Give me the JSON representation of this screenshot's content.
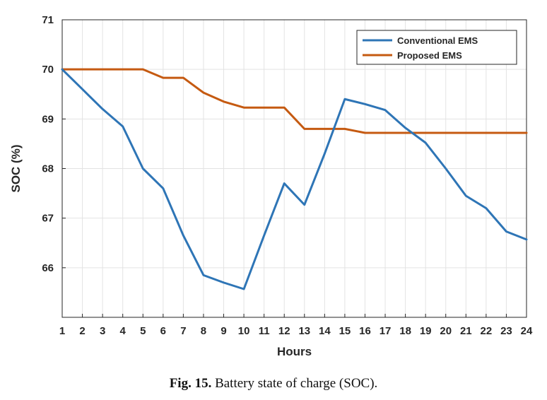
{
  "chart_data": {
    "type": "line",
    "title": "",
    "xlabel": "Hours",
    "ylabel": "SOC (%)",
    "x": [
      1,
      2,
      3,
      4,
      5,
      6,
      7,
      8,
      9,
      10,
      11,
      12,
      13,
      14,
      15,
      16,
      17,
      18,
      19,
      20,
      21,
      22,
      23,
      24
    ],
    "xlim": [
      1,
      24
    ],
    "ylim": [
      65,
      71
    ],
    "yticks": [
      66,
      67,
      68,
      69,
      70,
      71
    ],
    "grid": true,
    "legend_position": "top-right",
    "series": [
      {
        "name": "Conventional EMS",
        "color": "#2e75b6",
        "values": [
          70.0,
          69.6,
          69.2,
          68.85,
          68.0,
          67.6,
          66.65,
          65.85,
          65.7,
          65.57,
          66.65,
          67.7,
          67.27,
          68.3,
          69.4,
          69.3,
          69.18,
          68.82,
          68.52,
          68.0,
          67.45,
          67.2,
          66.73,
          66.57
        ]
      },
      {
        "name": "Proposed EMS",
        "color": "#c55a11",
        "values": [
          70.0,
          70.0,
          70.0,
          70.0,
          70.0,
          69.83,
          69.83,
          69.53,
          69.35,
          69.23,
          69.23,
          69.23,
          68.8,
          68.8,
          68.8,
          68.72,
          68.72,
          68.72,
          68.72,
          68.72,
          68.72,
          68.72,
          68.72,
          68.72
        ]
      }
    ]
  },
  "caption": {
    "label": "Fig. 15.",
    "text": "Battery state of charge (SOC)."
  }
}
